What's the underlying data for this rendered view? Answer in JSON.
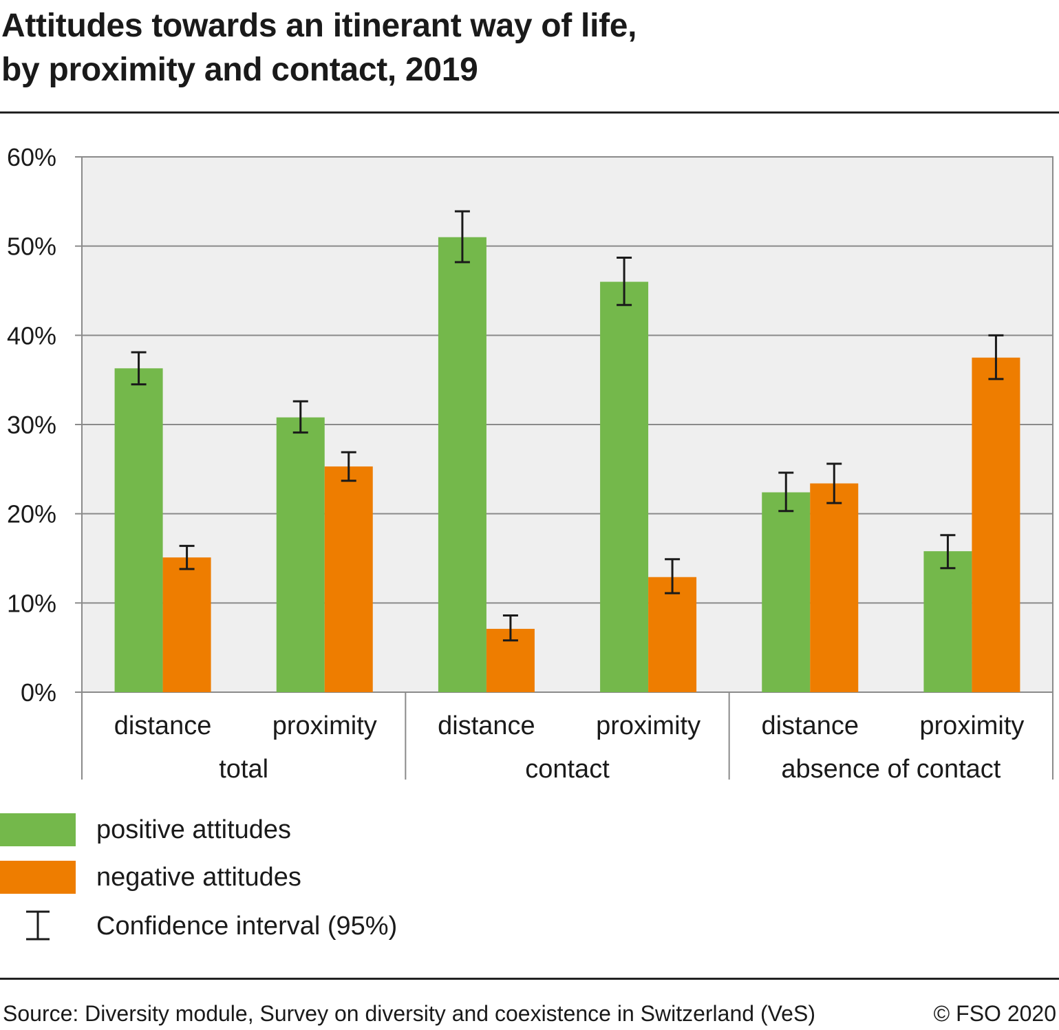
{
  "title_line1": "Attitudes towards an itinerant way of life,",
  "title_line2": "by proximity and contact, 2019",
  "chart_data": {
    "type": "bar",
    "groups": [
      {
        "label": "total",
        "categories": [
          "distance",
          "proximity"
        ]
      },
      {
        "label": "contact",
        "categories": [
          "distance",
          "proximity"
        ]
      },
      {
        "label": "absence of contact",
        "categories": [
          "distance",
          "proximity"
        ]
      }
    ],
    "series": [
      {
        "name": "positive attitudes",
        "color": "#74b84b",
        "values": [
          36.3,
          30.8,
          51.0,
          46.0,
          22.4,
          15.8
        ],
        "ci_low": [
          34.5,
          29.1,
          48.2,
          43.4,
          20.3,
          13.9
        ],
        "ci_high": [
          38.1,
          32.6,
          53.9,
          48.7,
          24.6,
          17.6
        ]
      },
      {
        "name": "negative attitudes",
        "color": "#ee7d00",
        "values": [
          15.1,
          25.3,
          7.1,
          12.9,
          23.4,
          37.5
        ],
        "ci_low": [
          13.8,
          23.7,
          5.8,
          11.1,
          21.2,
          35.1
        ],
        "ci_high": [
          16.4,
          26.9,
          8.6,
          14.9,
          25.6,
          40.0
        ]
      }
    ],
    "ylim": [
      0,
      60
    ],
    "yticks": [
      "0%",
      "10%",
      "20%",
      "30%",
      "40%",
      "50%",
      "60%"
    ],
    "grid": true,
    "plot_background": "#efefef",
    "legend_position": "bottom-left"
  },
  "legend": {
    "positive": "positive attitudes",
    "negative": "negative attitudes",
    "ci": "Confidence interval (95%)"
  },
  "footer": {
    "source": "Source: Diversity module, Survey on diversity and coexistence in Switzerland (VeS)",
    "copyright": "© FSO 2020"
  }
}
